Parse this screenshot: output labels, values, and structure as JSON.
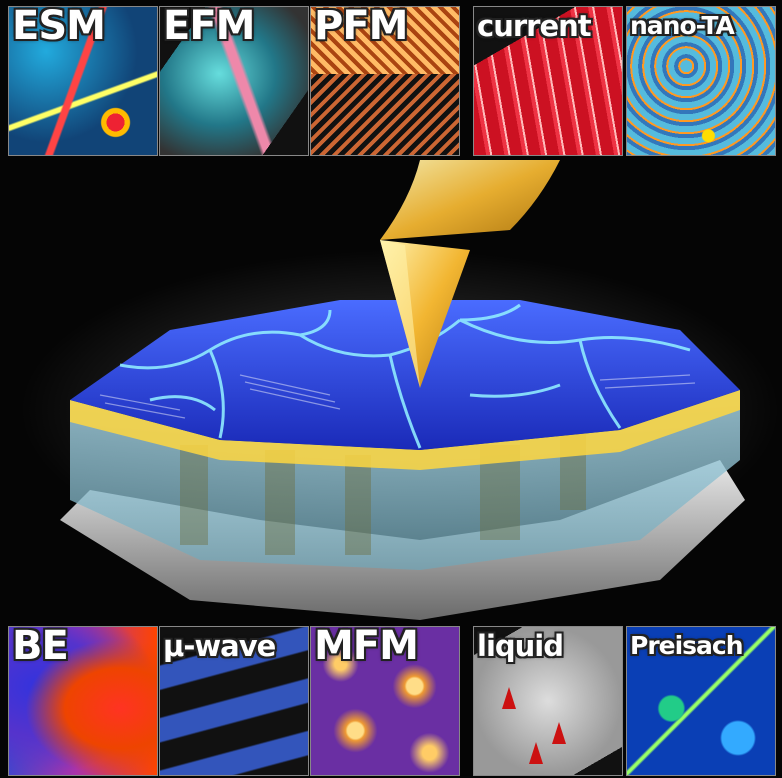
{
  "top_row": [
    {
      "id": "esm",
      "label": "ESM"
    },
    {
      "id": "efm",
      "label": "EFM"
    },
    {
      "id": "pfm",
      "label": "PFM"
    },
    {
      "id": "current",
      "label": "current"
    },
    {
      "id": "nano_ta",
      "label": "nano-TA"
    }
  ],
  "bottom_row": [
    {
      "id": "be",
      "label": "BE"
    },
    {
      "id": "microwave",
      "label": "μ-wave"
    },
    {
      "id": "mfm",
      "label": "MFM"
    },
    {
      "id": "liquid",
      "label": "liquid"
    },
    {
      "id": "preisach",
      "label": "Preisach"
    }
  ],
  "colors": {
    "background": "#050505",
    "tip": "#f2b632",
    "surface": "#2338c8",
    "grain_boundary": "#7fe3ff"
  }
}
